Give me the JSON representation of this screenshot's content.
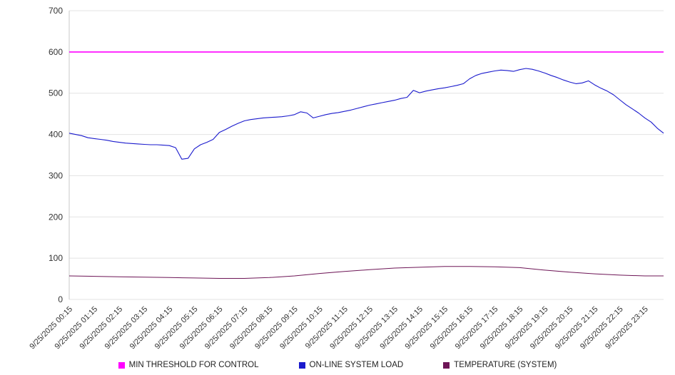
{
  "chart_data": {
    "type": "line",
    "title": "",
    "xlabel": "",
    "ylabel": "",
    "ylim": [
      0,
      700
    ],
    "yticks": [
      0,
      100,
      200,
      300,
      400,
      500,
      600,
      700
    ],
    "x_max": 23.75,
    "grid": "horizontal",
    "legend_position": "bottom",
    "x_labels": [
      "9/25/2025 00:15",
      "9/25/2025 01:15",
      "9/25/2025 02:15",
      "9/25/2025 03:15",
      "9/25/2025 04:15",
      "9/25/2025 05:15",
      "9/25/2025 06:15",
      "9/25/2025 07:15",
      "9/25/2025 08:15",
      "9/25/2025 09:15",
      "9/25/2025 10:15",
      "9/25/2025 11:15",
      "9/25/2025 12:15",
      "9/25/2025 13:15",
      "9/25/2025 14:15",
      "9/25/2025 15:15",
      "9/25/2025 16:15",
      "9/25/2025 17:15",
      "9/25/2025 18:15",
      "9/25/2025 19:15",
      "9/25/2025 20:15",
      "9/25/2025 21:15",
      "9/25/2025 22:15",
      "9/25/2025 23:15"
    ],
    "series": [
      {
        "name": "MIN THRESHOLD FOR CONTROL",
        "color": "#ff00ff",
        "stroke_width": 1.6,
        "x": [
          0,
          23.75
        ],
        "y": [
          600,
          600
        ]
      },
      {
        "name": "ON-LINE SYSTEM LOAD",
        "color": "#1a1acd",
        "stroke_width": 1.1,
        "x_start": 0,
        "x_step": 0.25,
        "y": [
          403,
          400,
          397,
          392,
          390,
          388,
          386,
          383,
          381,
          379,
          378,
          377,
          376,
          375,
          375,
          374,
          373,
          368,
          340,
          342,
          365,
          375,
          381,
          388,
          405,
          412,
          420,
          427,
          433,
          436,
          438,
          440,
          441,
          442,
          443,
          445,
          448,
          455,
          452,
          440,
          444,
          448,
          451,
          453,
          456,
          459,
          463,
          467,
          471,
          474,
          477,
          480,
          483,
          487,
          490,
          507,
          501,
          505,
          508,
          511,
          513,
          516,
          519,
          523,
          535,
          543,
          548,
          551,
          554,
          556,
          555,
          553,
          557,
          560,
          558,
          554,
          549,
          543,
          538,
          532,
          527,
          523,
          525,
          530,
          520,
          512,
          505,
          496,
          484,
          472,
          462,
          452,
          440,
          430,
          415,
          403
        ]
      },
      {
        "name": "TEMPERATURE (SYSTEM)",
        "color": "#6d1556",
        "stroke_width": 1.0,
        "x": [
          0,
          1,
          2,
          3,
          4,
          5,
          6,
          7,
          8,
          9,
          10,
          11,
          12,
          13,
          14,
          15,
          16,
          17,
          18,
          19,
          20,
          21,
          22,
          23,
          23.75
        ],
        "y": [
          57,
          56,
          55,
          54,
          53,
          52,
          51,
          51,
          53,
          57,
          63,
          68,
          72,
          76,
          78,
          80,
          80,
          79,
          77,
          71,
          66,
          62,
          59,
          57,
          57
        ]
      }
    ]
  }
}
